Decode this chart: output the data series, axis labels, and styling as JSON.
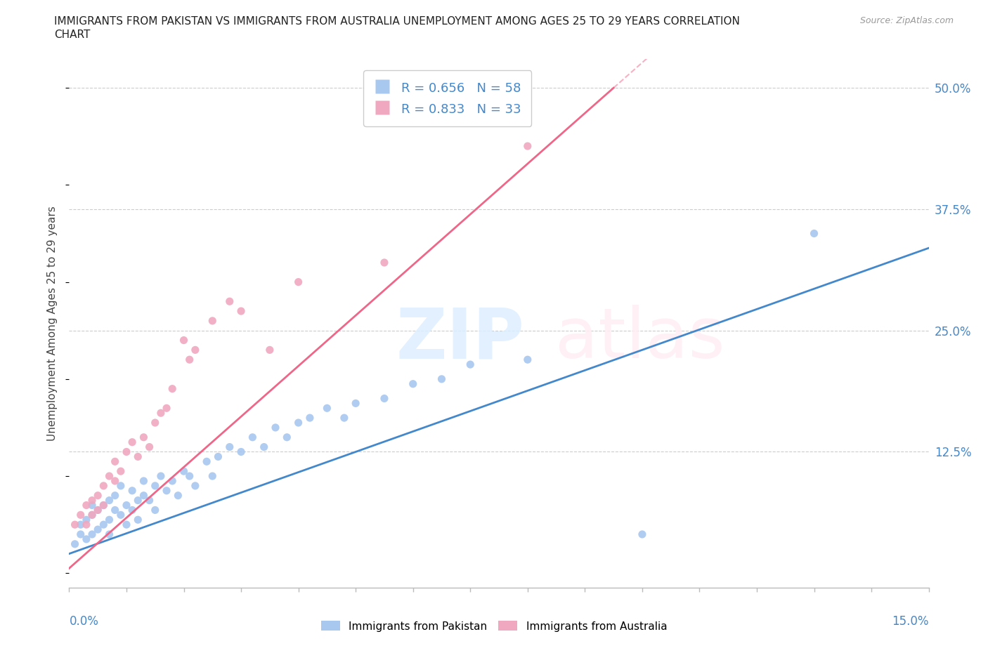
{
  "title_line1": "IMMIGRANTS FROM PAKISTAN VS IMMIGRANTS FROM AUSTRALIA UNEMPLOYMENT AMONG AGES 25 TO 29 YEARS CORRELATION",
  "title_line2": "CHART",
  "source_text": "Source: ZipAtlas.com",
  "ylabel": "Unemployment Among Ages 25 to 29 years",
  "ytick_labels": [
    "",
    "12.5%",
    "25.0%",
    "37.5%",
    "50.0%"
  ],
  "ytick_values": [
    0.0,
    0.125,
    0.25,
    0.375,
    0.5
  ],
  "xmin": 0.0,
  "xmax": 0.15,
  "ymin": -0.015,
  "ymax": 0.53,
  "pakistan_color": "#a8c8f0",
  "australia_color": "#f0a8c0",
  "pakistan_line_color": "#4488cc",
  "australia_line_color": "#ee6688",
  "pakistan_R": 0.656,
  "pakistan_N": 58,
  "australia_R": 0.833,
  "australia_N": 33,
  "legend_pakistan": "Immigrants from Pakistan",
  "legend_australia": "Immigrants from Australia",
  "pakistan_line_x0": 0.0,
  "pakistan_line_y0": 0.02,
  "pakistan_line_x1": 0.15,
  "pakistan_line_y1": 0.335,
  "australia_line_x0": 0.0,
  "australia_line_y0": 0.005,
  "australia_line_x1": 0.095,
  "australia_line_y1": 0.5,
  "pakistan_scatter_x": [
    0.001,
    0.002,
    0.002,
    0.003,
    0.003,
    0.004,
    0.004,
    0.004,
    0.005,
    0.005,
    0.006,
    0.006,
    0.007,
    0.007,
    0.007,
    0.008,
    0.008,
    0.009,
    0.009,
    0.01,
    0.01,
    0.011,
    0.011,
    0.012,
    0.012,
    0.013,
    0.013,
    0.014,
    0.015,
    0.015,
    0.016,
    0.017,
    0.018,
    0.019,
    0.02,
    0.021,
    0.022,
    0.024,
    0.025,
    0.026,
    0.028,
    0.03,
    0.032,
    0.034,
    0.036,
    0.038,
    0.04,
    0.042,
    0.045,
    0.048,
    0.05,
    0.055,
    0.06,
    0.065,
    0.07,
    0.08,
    0.1,
    0.13
  ],
  "pakistan_scatter_y": [
    0.03,
    0.04,
    0.05,
    0.035,
    0.055,
    0.04,
    0.06,
    0.07,
    0.045,
    0.065,
    0.05,
    0.07,
    0.055,
    0.075,
    0.04,
    0.065,
    0.08,
    0.06,
    0.09,
    0.07,
    0.05,
    0.085,
    0.065,
    0.075,
    0.055,
    0.08,
    0.095,
    0.075,
    0.09,
    0.065,
    0.1,
    0.085,
    0.095,
    0.08,
    0.105,
    0.1,
    0.09,
    0.115,
    0.1,
    0.12,
    0.13,
    0.125,
    0.14,
    0.13,
    0.15,
    0.14,
    0.155,
    0.16,
    0.17,
    0.16,
    0.175,
    0.18,
    0.195,
    0.2,
    0.215,
    0.22,
    0.04,
    0.35
  ],
  "australia_scatter_x": [
    0.001,
    0.002,
    0.003,
    0.003,
    0.004,
    0.004,
    0.005,
    0.005,
    0.006,
    0.006,
    0.007,
    0.008,
    0.008,
    0.009,
    0.01,
    0.011,
    0.012,
    0.013,
    0.014,
    0.015,
    0.016,
    0.017,
    0.018,
    0.02,
    0.021,
    0.022,
    0.025,
    0.028,
    0.03,
    0.035,
    0.04,
    0.055,
    0.08
  ],
  "australia_scatter_y": [
    0.05,
    0.06,
    0.05,
    0.07,
    0.06,
    0.075,
    0.065,
    0.08,
    0.07,
    0.09,
    0.1,
    0.095,
    0.115,
    0.105,
    0.125,
    0.135,
    0.12,
    0.14,
    0.13,
    0.155,
    0.165,
    0.17,
    0.19,
    0.24,
    0.22,
    0.23,
    0.26,
    0.28,
    0.27,
    0.23,
    0.3,
    0.32,
    0.44
  ]
}
